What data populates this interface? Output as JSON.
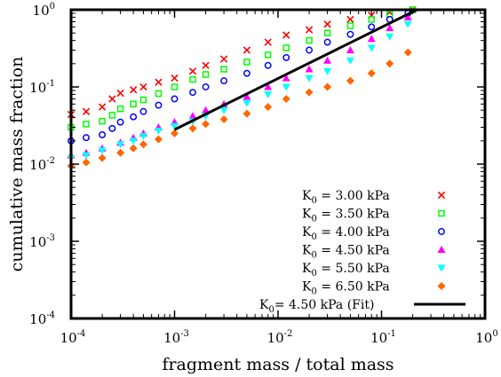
{
  "chart_data": {
    "type": "scatter",
    "title": "",
    "xlabel": "fragment mass / total mass",
    "ylabel": "cumulative mass fraction",
    "xscale": "log",
    "yscale": "log",
    "xlim": [
      0.0001,
      1
    ],
    "ylim": [
      0.0001,
      1
    ],
    "x_ticks": [
      {
        "base": "10",
        "exp": "-4"
      },
      {
        "base": "10",
        "exp": "-3"
      },
      {
        "base": "10",
        "exp": "-2"
      },
      {
        "base": "10",
        "exp": "-1"
      },
      {
        "base": "10",
        "exp": "0"
      }
    ],
    "y_ticks": [
      {
        "base": "10",
        "exp": "-4"
      },
      {
        "base": "10",
        "exp": "-3"
      },
      {
        "base": "10",
        "exp": "-2"
      },
      {
        "base": "10",
        "exp": "-1"
      },
      {
        "base": "10",
        "exp": "0"
      }
    ],
    "legend_position": "bottom-right",
    "series": [
      {
        "legend_prefix": "K",
        "legend_sub": "0",
        "legend_text": " = 3.00 kPa",
        "marker": "x",
        "color": "#ff0000",
        "x": [
          0.0001,
          0.00014,
          0.0002,
          0.00025,
          0.0003,
          0.0004,
          0.0005,
          0.0007,
          0.001,
          0.0015,
          0.002,
          0.003,
          0.005,
          0.008,
          0.012,
          0.02,
          0.03,
          0.05,
          0.08,
          0.12,
          0.2
        ],
        "y": [
          0.044,
          0.048,
          0.055,
          0.07,
          0.083,
          0.092,
          0.1,
          0.115,
          0.13,
          0.16,
          0.19,
          0.23,
          0.3,
          0.38,
          0.47,
          0.55,
          0.65,
          0.75,
          0.85,
          0.93,
          1.0
        ]
      },
      {
        "legend_prefix": "K",
        "legend_sub": "0",
        "legend_text": " = 3.50 kPa",
        "marker": "square",
        "color": "#00ff00",
        "x": [
          0.0001,
          0.00014,
          0.0002,
          0.00025,
          0.0003,
          0.0004,
          0.0005,
          0.0007,
          0.001,
          0.0015,
          0.002,
          0.003,
          0.005,
          0.008,
          0.012,
          0.02,
          0.03,
          0.05,
          0.08,
          0.12,
          0.2
        ],
        "y": [
          0.03,
          0.033,
          0.036,
          0.043,
          0.052,
          0.06,
          0.068,
          0.082,
          0.1,
          0.125,
          0.145,
          0.17,
          0.21,
          0.26,
          0.32,
          0.4,
          0.5,
          0.62,
          0.75,
          0.88,
          1.0
        ]
      },
      {
        "legend_prefix": "K",
        "legend_sub": "0",
        "legend_text": " = 4.00 kPa",
        "marker": "circle",
        "color": "#0000ff",
        "x": [
          0.0001,
          0.00014,
          0.0002,
          0.00025,
          0.0003,
          0.0004,
          0.0005,
          0.0007,
          0.001,
          0.0015,
          0.002,
          0.003,
          0.005,
          0.008,
          0.012,
          0.02,
          0.03,
          0.05,
          0.08,
          0.12,
          0.18
        ],
        "y": [
          0.02,
          0.022,
          0.024,
          0.029,
          0.035,
          0.041,
          0.048,
          0.058,
          0.07,
          0.085,
          0.1,
          0.12,
          0.15,
          0.19,
          0.24,
          0.3,
          0.38,
          0.48,
          0.6,
          0.75,
          0.9
        ]
      },
      {
        "legend_prefix": "K",
        "legend_sub": "0",
        "legend_text": " = 4.50 kPa",
        "marker": "triangle-up",
        "color": "#ff00ff",
        "x": [
          0.0001,
          0.00014,
          0.0002,
          0.0003,
          0.0004,
          0.0005,
          0.0007,
          0.001,
          0.0015,
          0.002,
          0.003,
          0.005,
          0.008,
          0.012,
          0.02,
          0.03,
          0.05,
          0.08,
          0.12,
          0.18
        ],
        "y": [
          0.013,
          0.014,
          0.016,
          0.019,
          0.022,
          0.025,
          0.03,
          0.035,
          0.042,
          0.05,
          0.06,
          0.075,
          0.1,
          0.13,
          0.17,
          0.22,
          0.3,
          0.42,
          0.58,
          0.8
        ]
      },
      {
        "legend_prefix": "K",
        "legend_sub": "0",
        "legend_text": " = 5.50 kPa",
        "marker": "triangle-down",
        "color": "#00ffff",
        "x": [
          0.0001,
          0.00014,
          0.0002,
          0.0003,
          0.0004,
          0.0005,
          0.0007,
          0.001,
          0.0015,
          0.002,
          0.003,
          0.005,
          0.008,
          0.012,
          0.02,
          0.03,
          0.05,
          0.08,
          0.12,
          0.18
        ],
        "y": [
          0.012,
          0.013,
          0.015,
          0.018,
          0.02,
          0.023,
          0.027,
          0.031,
          0.036,
          0.042,
          0.05,
          0.062,
          0.08,
          0.1,
          0.13,
          0.16,
          0.22,
          0.32,
          0.45,
          0.65
        ]
      },
      {
        "legend_prefix": "K",
        "legend_sub": "0",
        "legend_text": " = 6.50 kPa",
        "marker": "diamond",
        "color": "#ff6600",
        "x": [
          0.0001,
          0.00014,
          0.0002,
          0.0003,
          0.0004,
          0.0005,
          0.0007,
          0.001,
          0.0015,
          0.002,
          0.003,
          0.005,
          0.008,
          0.012,
          0.02,
          0.03,
          0.05,
          0.08,
          0.12,
          0.18
        ],
        "y": [
          0.0095,
          0.0105,
          0.012,
          0.014,
          0.016,
          0.018,
          0.021,
          0.025,
          0.029,
          0.033,
          0.038,
          0.045,
          0.055,
          0.07,
          0.085,
          0.1,
          0.12,
          0.15,
          0.2,
          0.28
        ]
      }
    ],
    "fit": {
      "legend_prefix": "K",
      "legend_sub": "0",
      "legend_text": "=  4.50 kPa (Fit)",
      "color": "#000000",
      "x": [
        0.001,
        0.22
      ],
      "y": [
        0.028,
        1.0
      ]
    }
  }
}
